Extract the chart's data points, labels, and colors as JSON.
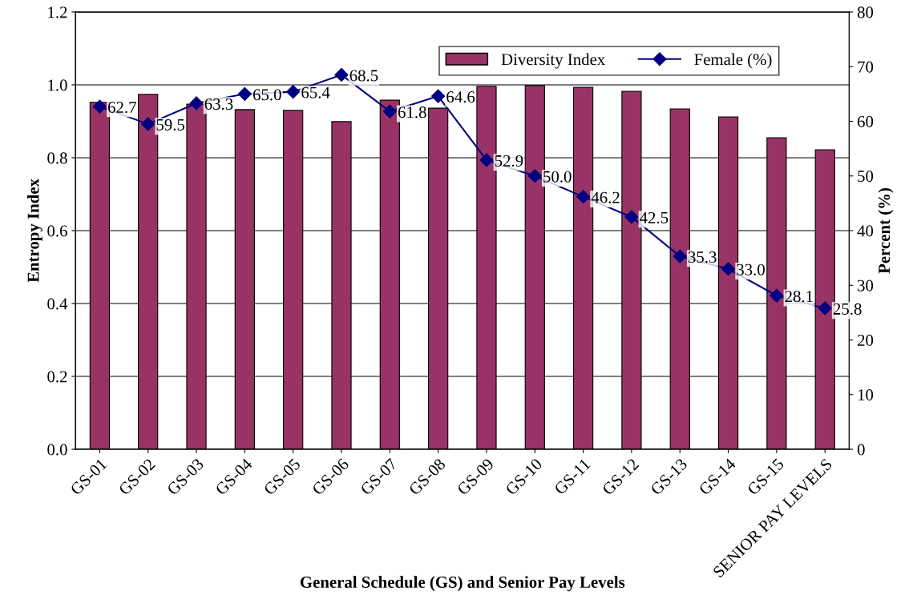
{
  "chart_data": {
    "type": "bar",
    "xlabel": "General Schedule (GS) and Senior Pay Levels",
    "ylabel": "Entropy Index",
    "y2label": "Percent (%)",
    "categories": [
      "GS-01",
      "GS-02",
      "GS-03",
      "GS-04",
      "GS-05",
      "GS-06",
      "GS-07",
      "GS-08",
      "GS-09",
      "GS-10",
      "GS-11",
      "GS-12",
      "GS-13",
      "GS-14",
      "GS-15",
      "SENIOR PAY LEVELS"
    ],
    "series": [
      {
        "name": "Diversity Index",
        "color": "#993366",
        "values": [
          0.952,
          0.974,
          0.947,
          0.932,
          0.93,
          0.899,
          0.958,
          0.936,
          0.996,
          0.998,
          0.993,
          0.982,
          0.934,
          0.912,
          0.855,
          0.822
        ]
      },
      {
        "name": "Female (%)",
        "type": "line",
        "axis": "y2",
        "color": "#000080",
        "marker": "diamond",
        "values": [
          62.7,
          59.5,
          63.3,
          65.0,
          65.4,
          68.5,
          61.8,
          64.6,
          52.9,
          50.0,
          46.2,
          42.5,
          35.3,
          33.0,
          28.1,
          25.8
        ],
        "value_labels": [
          "62.7",
          "59.5",
          "63.3",
          "65.0",
          "65.4",
          "68.5",
          "61.8",
          "64.6",
          "52.9",
          "50.0",
          "46.2",
          "42.5",
          "35.3",
          "33.0",
          "28.1",
          "25.8"
        ]
      }
    ],
    "ylim": [
      0,
      1.2
    ],
    "yticks": [
      {
        "value": 0,
        "label": "0.0"
      },
      {
        "value": 0.2,
        "label": "0.2"
      },
      {
        "value": 0.4,
        "label": "0.4"
      },
      {
        "value": 0.6,
        "label": "0.6"
      },
      {
        "value": 0.8,
        "label": "0.8"
      },
      {
        "value": 1.0,
        "label": "1.0"
      },
      {
        "value": 1.2,
        "label": "1.2"
      }
    ],
    "y2lim": [
      0,
      80
    ],
    "y2ticks": [
      0,
      10,
      20,
      30,
      40,
      50,
      60,
      70,
      80
    ],
    "grid": "y",
    "legend": "top right"
  }
}
